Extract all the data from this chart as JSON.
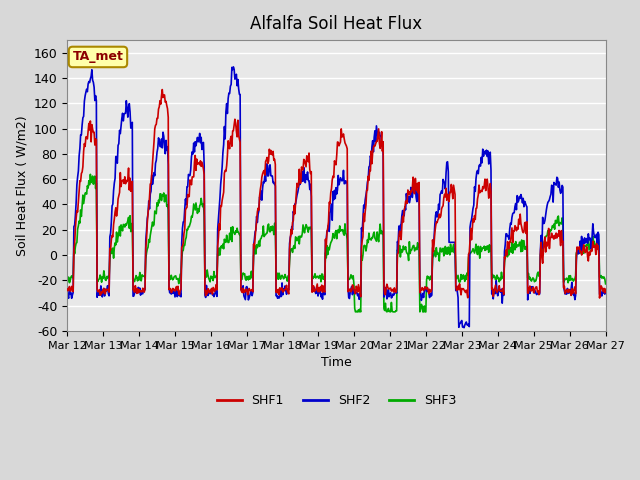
{
  "title": "Alfalfa Soil Heat Flux",
  "xlabel": "Time",
  "ylabel": "Soil Heat Flux ( W/m2)",
  "ylim": [
    -60,
    170
  ],
  "yticks": [
    -60,
    -40,
    -20,
    0,
    20,
    40,
    60,
    80,
    100,
    120,
    140,
    160
  ],
  "xtick_labels": [
    "Mar 12",
    "Mar 13",
    "Mar 14",
    "Mar 15",
    "Mar 16",
    "Mar 17",
    "Mar 18",
    "Mar 19",
    "Mar 20",
    "Mar 21",
    "Mar 22",
    "Mar 23",
    "Mar 24",
    "Mar 25",
    "Mar 26",
    "Mar 27"
  ],
  "colors": {
    "SHF1": "#cc0000",
    "SHF2": "#0000cc",
    "SHF3": "#00aa00"
  },
  "annotation_text": "TA_met",
  "annotation_bg": "#ffffaa",
  "annotation_border": "#aa8800",
  "bg_color": "#e8e8e8",
  "plot_bg": "#e8e8e8",
  "grid_color": "#ffffff",
  "linewidth": 1.2
}
